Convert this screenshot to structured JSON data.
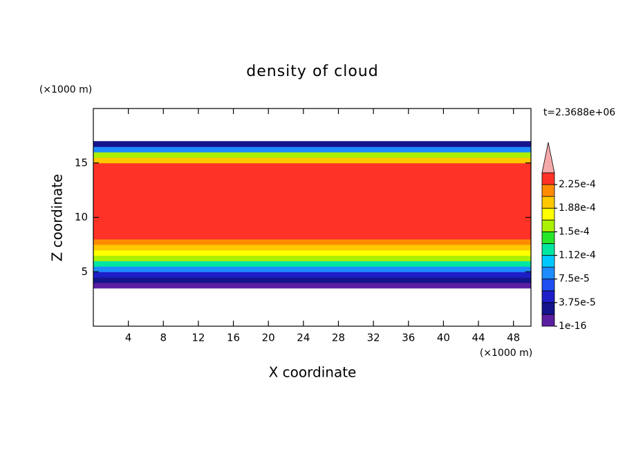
{
  "chart_data": {
    "type": "contour",
    "title": "density of cloud",
    "x_unit": "(×1000 m)",
    "y_unit": "(×1000 m)",
    "xlabel": "X coordinate",
    "ylabel": "Z coordinate",
    "time_label": "t=2.3688e+06",
    "xlim": [
      0,
      50
    ],
    "ylim": [
      0,
      20
    ],
    "xticks": [
      4,
      8,
      12,
      16,
      20,
      24,
      28,
      32,
      36,
      40,
      44,
      48
    ],
    "yticks": [
      5,
      10,
      15
    ],
    "z": [
      3.5,
      4,
      4.5,
      5,
      5.5,
      6,
      6.5,
      7,
      7.5,
      8,
      8.5,
      9,
      9.5,
      10,
      10.5,
      11,
      11.5,
      12,
      12.5,
      13,
      13.5,
      14,
      14.5,
      15,
      15.5,
      16,
      16.5
    ],
    "values": [
      1e-05,
      3e-05,
      5e-05,
      8e-05,
      0.00012,
      0.000155,
      0.00018,
      0.0002,
      0.000215,
      0.00023,
      0.000235,
      0.000235,
      0.000235,
      0.000235,
      0.000235,
      0.000235,
      0.000235,
      0.000235,
      0.000235,
      0.000235,
      0.000235,
      0.00023,
      0.000225,
      0.0002,
      0.00016,
      9e-05,
      3e-05
    ],
    "levels": [
      1e-16,
      1.875e-05,
      3.75e-05,
      5.625e-05,
      7.5e-05,
      9.375e-05,
      0.0001125,
      0.00013125,
      0.00015,
      0.00016875,
      0.0001875,
      0.00020625,
      0.000225,
      0.00024375
    ],
    "colors": [
      "#5a1ea0",
      "#14148c",
      "#1e1ec8",
      "#1e50f0",
      "#1e8cff",
      "#00c8ff",
      "#00e6a0",
      "#28e628",
      "#aaf000",
      "#ffff00",
      "#ffc800",
      "#ff8c00",
      "#ff3228"
    ],
    "extend_color": "#f5a8a8",
    "cbar_ticks": [
      {
        "value": 1e-16,
        "label": "1e-16"
      },
      {
        "value": 3.75e-05,
        "label": "3.75e-5"
      },
      {
        "value": 7.5e-05,
        "label": "7.5e-5"
      },
      {
        "value": 0.0001125,
        "label": "1.12e-4"
      },
      {
        "value": 0.00015,
        "label": "1.5e-4"
      },
      {
        "value": 0.0001875,
        "label": "1.88e-4"
      },
      {
        "value": 0.000225,
        "label": "2.25e-4"
      }
    ]
  }
}
